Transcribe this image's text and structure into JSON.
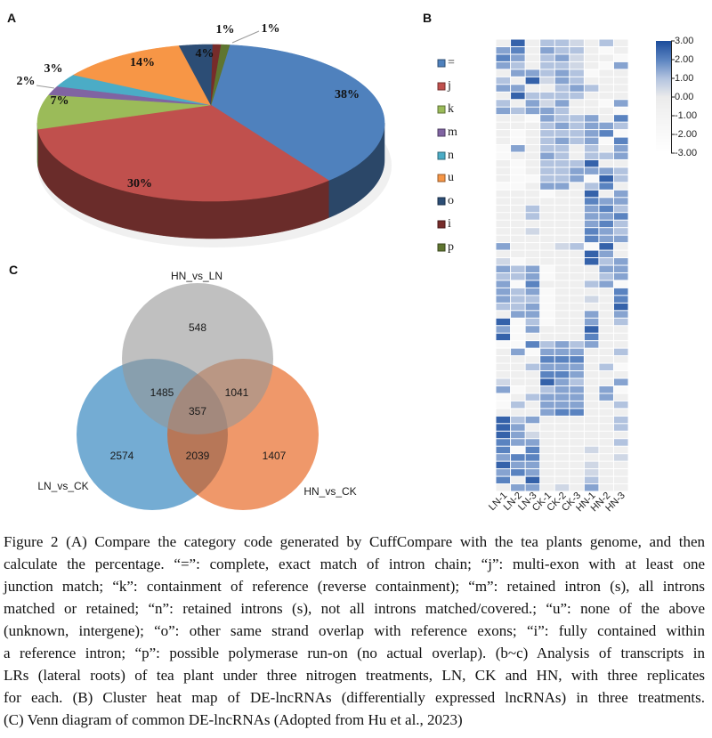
{
  "figure": {
    "panels": {
      "a": "A",
      "b": "B",
      "c": "C"
    },
    "caption_lines": [
      "Figure 2 (A) Compare the category code generated by CuffCompare with the tea plants genome, and then",
      "calculate the percentage. “=”: complete, exact match of intron chain; “j”: multi-exon with at least one",
      "junction match; “k”: containment of reference (reverse containment); “m”: retained intron (s), all introns",
      "matched or retained; “n”: retained introns (s), not all introns matched/covered.; “u”: none of the above",
      "(unknown, intergene); “o”: other same strand overlap with reference exons; “i”: fully contained within",
      "a reference intron; “p”: possible polymerase run-on (no actual overlap). (b~c) Analysis of transcripts in",
      "LRs (lateral roots) of tea plant under three nitrogen treatments, LN, CK and HN, with three replicates",
      "for each. (B) Cluster heat map of DE-lncRNAs (differentially expressed lncRNAs) in three treatments.",
      "(C) Venn diagram of common DE-lncRNAs (Adopted from Hu et al., 2023)"
    ]
  },
  "chart_data": [
    {
      "type": "pie",
      "panel": "A",
      "style": "3d",
      "title": "",
      "labels": [
        "=",
        "j",
        "k",
        "m",
        "n",
        "u",
        "o",
        "i",
        "p"
      ],
      "values": [
        38,
        30,
        7,
        2,
        3,
        14,
        4,
        1,
        1
      ],
      "data_labels": [
        "38%",
        "30%",
        "7%",
        "2%",
        "3%",
        "14%",
        "4%",
        "1%",
        "1%"
      ],
      "colors": [
        "#4f81bd",
        "#c0504d",
        "#9bbb59",
        "#8064a2",
        "#4bacc6",
        "#f79646",
        "#2c4d75",
        "#772c2a",
        "#5f7530"
      ],
      "legend_position": "right"
    },
    {
      "type": "heatmap",
      "panel": "B",
      "title": "",
      "columns": [
        "LN-1",
        "LN-2",
        "LN-3",
        "CK-1",
        "CK-2",
        "CK-3",
        "HN-1",
        "HN-2",
        "HN-3"
      ],
      "values": [
        [
          -0.5,
          2.6,
          -0.5,
          1.0,
          1.0,
          0.5,
          -0.5,
          1.0,
          -0.5
        ],
        [
          1.5,
          2.0,
          -0.5,
          1.5,
          1.0,
          1.0,
          -0.5,
          -2.0,
          -0.5
        ],
        [
          2.0,
          1.5,
          -0.5,
          1.0,
          1.5,
          0.5,
          -0.5,
          -0.5,
          -2.0
        ],
        [
          1.5,
          1.0,
          -0.5,
          1.0,
          1.0,
          0.5,
          -0.5,
          -2.0,
          1.5
        ],
        [
          -0.5,
          1.5,
          1.5,
          1.0,
          1.5,
          1.0,
          -2.0,
          -0.5,
          -0.5
        ],
        [
          1.0,
          -0.5,
          2.6,
          0.5,
          1.5,
          1.0,
          -0.5,
          -0.5,
          -0.5
        ],
        [
          1.5,
          1.5,
          -0.5,
          -0.5,
          1.0,
          1.5,
          1.0,
          -0.5,
          -0.5
        ],
        [
          -0.5,
          2.6,
          1.0,
          1.0,
          1.0,
          1.0,
          -0.5,
          -0.5,
          -0.5
        ],
        [
          1.0,
          -0.5,
          1.5,
          0.5,
          1.5,
          -0.5,
          -0.5,
          -2.0,
          1.5
        ],
        [
          1.5,
          1.0,
          1.5,
          1.5,
          1.0,
          -0.5,
          -0.5,
          -0.5,
          -2.0
        ],
        [
          -0.5,
          -0.5,
          -2.0,
          1.5,
          1.0,
          1.0,
          1.5,
          -0.5,
          2.0
        ],
        [
          -0.5,
          -0.5,
          -0.5,
          1.0,
          1.5,
          1.0,
          1.5,
          1.5,
          1.0
        ],
        [
          -0.5,
          -2.0,
          -0.5,
          1.0,
          1.0,
          1.0,
          1.5,
          2.0,
          -2.0
        ],
        [
          -0.5,
          -2.0,
          -0.5,
          1.0,
          1.5,
          1.0,
          1.5,
          -2.0,
          2.0
        ],
        [
          -2.0,
          1.5,
          -0.5,
          1.0,
          1.0,
          -0.5,
          1.0,
          -0.5,
          1.5
        ],
        [
          -2.0,
          -0.5,
          -0.5,
          1.5,
          1.0,
          -0.5,
          1.0,
          1.0,
          1.5
        ],
        [
          -0.5,
          -2.0,
          -0.5,
          1.0,
          1.0,
          1.0,
          2.6,
          -0.5,
          -0.5
        ],
        [
          -0.5,
          -2.0,
          -0.5,
          1.0,
          1.0,
          1.5,
          1.5,
          1.5,
          1.0
        ],
        [
          -0.5,
          -2.0,
          -2.0,
          1.0,
          1.0,
          1.5,
          -2.0,
          2.6,
          1.0
        ],
        [
          -2.0,
          -2.0,
          -0.5,
          1.5,
          1.5,
          -0.5,
          1.0,
          2.0,
          -0.5
        ],
        [
          -0.5,
          -0.5,
          -0.5,
          -2.0,
          -0.5,
          -0.5,
          2.6,
          -0.5,
          1.5
        ],
        [
          -0.5,
          -0.5,
          -0.5,
          -0.5,
          -0.5,
          -0.5,
          2.0,
          1.5,
          1.5
        ],
        [
          -0.5,
          -0.5,
          1.0,
          -0.5,
          -0.5,
          -0.5,
          1.5,
          2.0,
          1.0
        ],
        [
          -0.5,
          -0.5,
          1.0,
          -0.5,
          -0.5,
          -0.5,
          1.5,
          1.5,
          2.0
        ],
        [
          -0.5,
          -0.5,
          -0.5,
          -0.5,
          -0.5,
          -0.5,
          1.5,
          2.0,
          1.0
        ],
        [
          -0.5,
          -0.5,
          0.5,
          -0.5,
          -0.5,
          -0.5,
          2.0,
          1.5,
          1.0
        ],
        [
          -0.5,
          -0.5,
          -0.5,
          -0.5,
          -0.5,
          -0.5,
          2.0,
          1.5,
          1.5
        ],
        [
          1.5,
          -0.5,
          -0.5,
          -0.5,
          0.5,
          1.0,
          -2.0,
          2.6,
          -0.5
        ],
        [
          -0.5,
          -0.5,
          -0.5,
          -0.5,
          -0.5,
          -0.5,
          2.6,
          1.5,
          -0.5
        ],
        [
          0.5,
          -2.0,
          -0.5,
          -0.5,
          -0.5,
          -0.5,
          2.6,
          1.0,
          1.5
        ],
        [
          1.5,
          1.0,
          1.5,
          -2.0,
          -0.5,
          -0.5,
          -0.5,
          1.5,
          1.5
        ],
        [
          1.0,
          1.0,
          1.5,
          -2.0,
          -0.5,
          -0.5,
          -0.5,
          1.0,
          1.5
        ],
        [
          1.5,
          -2.0,
          2.0,
          -0.5,
          -0.5,
          -0.5,
          1.0,
          1.5,
          -2.0
        ],
        [
          1.5,
          1.0,
          1.5,
          -2.0,
          -0.5,
          -0.5,
          -0.5,
          -0.5,
          2.0
        ],
        [
          1.5,
          1.0,
          1.0,
          -2.0,
          -0.5,
          -0.5,
          0.5,
          -0.5,
          2.0
        ],
        [
          1.0,
          1.0,
          1.5,
          -2.0,
          -0.5,
          -0.5,
          -0.5,
          -0.5,
          2.6
        ],
        [
          -0.5,
          1.5,
          1.5,
          -2.0,
          -0.5,
          -0.5,
          1.5,
          -0.5,
          1.5
        ],
        [
          2.6,
          -2.0,
          1.0,
          -2.0,
          -0.5,
          -0.5,
          1.5,
          -0.5,
          1.0
        ],
        [
          1.5,
          -2.0,
          1.5,
          -0.5,
          -0.5,
          -0.5,
          2.6,
          -0.5,
          -0.5
        ],
        [
          2.6,
          -2.0,
          -0.5,
          -0.5,
          -0.5,
          -0.5,
          2.0,
          -0.5,
          -0.5
        ],
        [
          -2.0,
          -2.0,
          2.0,
          1.0,
          1.5,
          1.0,
          1.5,
          -0.5,
          -0.5
        ],
        [
          -0.5,
          1.5,
          -2.0,
          1.5,
          1.5,
          1.5,
          -0.5,
          -0.5,
          1.0
        ],
        [
          -0.5,
          -0.5,
          -0.5,
          2.0,
          2.0,
          2.0,
          -0.5,
          -0.5,
          -0.5
        ],
        [
          -0.5,
          -0.5,
          1.0,
          1.5,
          1.5,
          1.5,
          -0.5,
          1.0,
          -2.0
        ],
        [
          -0.5,
          -0.5,
          -0.5,
          2.0,
          2.0,
          1.5,
          -0.5,
          -0.5,
          -0.5
        ],
        [
          0.5,
          -0.5,
          -0.5,
          2.6,
          1.5,
          1.0,
          -0.5,
          -0.5,
          1.5
        ],
        [
          1.5,
          -2.0,
          -0.5,
          1.0,
          1.5,
          1.5,
          -0.5,
          1.5,
          -2.0
        ],
        [
          -2.0,
          -0.5,
          1.0,
          1.5,
          1.5,
          1.5,
          -0.5,
          1.5,
          -0.5
        ],
        [
          -2.0,
          1.0,
          -0.5,
          1.5,
          1.5,
          1.5,
          -0.5,
          -0.5,
          1.0
        ],
        [
          -0.5,
          -0.5,
          -0.5,
          1.5,
          2.0,
          2.0,
          -0.5,
          -0.5,
          -0.5
        ],
        [
          2.6,
          1.0,
          1.5,
          -0.5,
          -0.5,
          -0.5,
          -0.5,
          -0.5,
          1.0
        ],
        [
          2.6,
          1.5,
          -0.5,
          -0.5,
          -0.5,
          -0.5,
          -0.5,
          -0.5,
          1.0
        ],
        [
          2.6,
          1.5,
          0.5,
          -0.5,
          -0.5,
          -0.5,
          -0.5,
          -0.5,
          -0.5
        ],
        [
          2.0,
          1.5,
          1.5,
          -0.5,
          -0.5,
          -0.5,
          -0.5,
          -0.5,
          1.0
        ],
        [
          2.0,
          -2.0,
          2.0,
          -0.5,
          -0.5,
          -0.5,
          0.5,
          -0.5,
          -0.5
        ],
        [
          1.5,
          2.0,
          2.0,
          -0.5,
          -0.5,
          -0.5,
          -0.5,
          -0.5,
          0.5
        ],
        [
          2.6,
          1.5,
          1.5,
          -0.5,
          -0.5,
          -0.5,
          0.5,
          -0.5,
          -0.5
        ],
        [
          1.5,
          2.0,
          1.5,
          -0.5,
          -0.5,
          -0.5,
          0.5,
          -0.5,
          -0.5
        ],
        [
          2.0,
          -0.5,
          2.6,
          -0.5,
          -0.5,
          -0.5,
          1.0,
          -0.5,
          -0.5
        ],
        [
          -0.5,
          1.5,
          1.5,
          -0.5,
          0.5,
          -0.5,
          1.5,
          -0.5,
          -0.5
        ]
      ],
      "colorbar": {
        "range": [
          -3,
          3
        ],
        "ticks": [
          "3.00",
          "2.00",
          "1.00",
          "0.00",
          "-1.00",
          "-2.00",
          "-3.00"
        ],
        "stops": [
          {
            "v": -3,
            "c": "#ffffff"
          },
          {
            "v": -1,
            "c": "#f3f3f3"
          },
          {
            "v": 0,
            "c": "#ebebeb"
          },
          {
            "v": 1,
            "c": "#b2c3df"
          },
          {
            "v": 2,
            "c": "#5a83c0"
          },
          {
            "v": 3,
            "c": "#1c4c9b"
          }
        ],
        "position": "right"
      }
    },
    {
      "type": "table",
      "form": "venn",
      "panel": "C",
      "title": "",
      "sets": [
        "HN_vs_LN",
        "LN_vs_CK",
        "HN_vs_CK"
      ],
      "set_colors": [
        "#969696",
        "#1775b6",
        "#e45307"
      ],
      "regions": [
        {
          "sets": [
            "HN_vs_LN"
          ],
          "count": 548
        },
        {
          "sets": [
            "HN_vs_LN",
            "LN_vs_CK"
          ],
          "count": 1485
        },
        {
          "sets": [
            "HN_vs_LN",
            "HN_vs_CK"
          ],
          "count": 1041
        },
        {
          "sets": [
            "HN_vs_LN",
            "LN_vs_CK",
            "HN_vs_CK"
          ],
          "count": 357
        },
        {
          "sets": [
            "LN_vs_CK"
          ],
          "count": 2574
        },
        {
          "sets": [
            "LN_vs_CK",
            "HN_vs_CK"
          ],
          "count": 2039
        },
        {
          "sets": [
            "HN_vs_CK"
          ],
          "count": 1407
        }
      ]
    }
  ]
}
